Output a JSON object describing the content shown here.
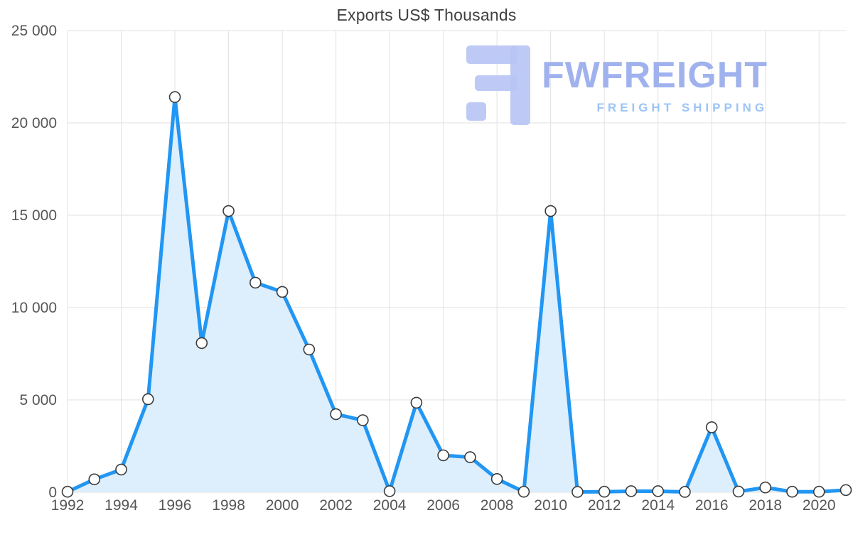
{
  "title": "Exports US$ Thousands",
  "watermark": {
    "brand": "FWFREIGHT",
    "tagline": "FREIGHT SHIPPING"
  },
  "colors": {
    "line": "#2196f3",
    "area_fill": "#ddeefc",
    "grid": "#e2e2e2",
    "axis_text": "#565656",
    "title_text": "#3f3f3f",
    "marker_fill": "#ffffff",
    "marker_stroke": "#3b3b3b",
    "watermark_icon": "#b9c6f4",
    "watermark_brand": "#a0b2ee",
    "watermark_tagline": "#9cc4f7"
  },
  "chart_data": {
    "type": "area",
    "title": "Exports US$ Thousands",
    "xlabel": "",
    "ylabel": "",
    "grid": true,
    "legend": "none",
    "ylim": [
      0,
      25000
    ],
    "y_ticks": [
      0,
      5000,
      10000,
      15000,
      20000,
      25000
    ],
    "y_tick_labels": [
      "0",
      "5 000",
      "10 000",
      "15 000",
      "20 000",
      "25 000"
    ],
    "x_range": [
      1992,
      2021
    ],
    "x_ticks": [
      1992,
      1994,
      1996,
      1998,
      2000,
      2002,
      2004,
      2006,
      2008,
      2010,
      2012,
      2014,
      2016,
      2018,
      2020
    ],
    "x": [
      1992,
      1993,
      1994,
      1995,
      1996,
      1997,
      1998,
      1999,
      2000,
      2001,
      2002,
      2003,
      2004,
      2005,
      2006,
      2007,
      2008,
      2009,
      2010,
      2011,
      2012,
      2013,
      2014,
      2015,
      2016,
      2017,
      2018,
      2019,
      2020,
      2021
    ],
    "values": [
      30,
      700,
      1230,
      5040,
      21400,
      8080,
      15230,
      11350,
      10850,
      7730,
      4230,
      3900,
      60,
      4850,
      2000,
      1900,
      720,
      30,
      15230,
      20,
      30,
      60,
      60,
      20,
      3520,
      40,
      260,
      30,
      30,
      120
    ]
  }
}
